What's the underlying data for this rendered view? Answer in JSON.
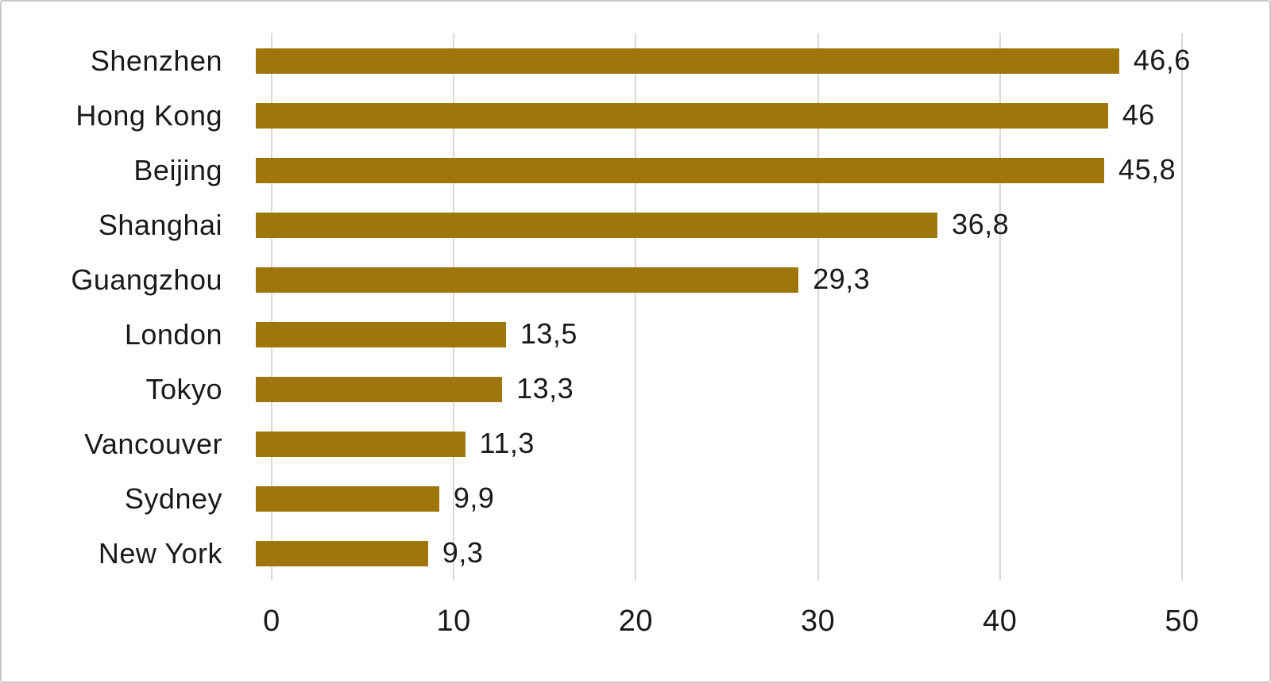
{
  "chart_data": {
    "type": "bar",
    "orientation": "horizontal",
    "title": "",
    "xlabel": "",
    "ylabel": "",
    "categories": [
      "Shenzhen",
      "Hong Kong",
      "Beijing",
      "Shanghai",
      "Guangzhou",
      "London",
      "Tokyo",
      "Vancouver",
      "Sydney",
      "New York"
    ],
    "values": [
      46.6,
      46,
      45.8,
      36.8,
      29.3,
      13.5,
      13.3,
      11.3,
      9.9,
      9.3
    ],
    "value_labels": [
      "46,6",
      "46",
      "45,8",
      "36,8",
      "29,3",
      "13,5",
      "13,3",
      "11,3",
      "9,9",
      "9,3"
    ],
    "xlim": [
      0,
      50
    ],
    "x_ticks": [
      0,
      10,
      20,
      30,
      40,
      50
    ],
    "x_tick_labels": [
      "0",
      "10",
      "20",
      "30",
      "40",
      "50"
    ],
    "grid": "vertical-gridlines-on",
    "legend": "none",
    "colors": {
      "bar": "#9E760C",
      "gridline": "#D9D9D9",
      "text": "#1A1A1A",
      "background": "#FFFFFF",
      "border": "#C9C9C9"
    }
  }
}
